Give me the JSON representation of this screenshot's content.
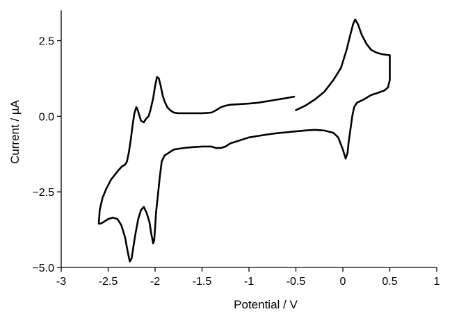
{
  "chart_data": {
    "type": "line",
    "title": "",
    "xlabel": "Potential  / V",
    "ylabel": "Current / µA",
    "xlim": [
      -3,
      1
    ],
    "ylim": [
      -5,
      3.5
    ],
    "xticks": [
      -3,
      -2.5,
      -2,
      -1.5,
      -1,
      -0.5,
      0,
      0.5,
      1
    ],
    "xtick_labels": [
      "-3",
      "-2.5",
      "-2",
      "-1.5",
      "-1",
      "-0.5",
      "0",
      "0.5",
      "1"
    ],
    "yticks": [
      -5,
      -2.5,
      0,
      2.5
    ],
    "ytick_labels": [
      "−5.0",
      "−2.5",
      "0.0",
      "2.5"
    ],
    "grid": false,
    "legend": "none",
    "series": [
      {
        "x": [
          -0.5,
          -0.4,
          -0.3,
          -0.2,
          -0.1,
          -0.02,
          0.04,
          0.08,
          0.11,
          0.13,
          0.16,
          0.2,
          0.25,
          0.3,
          0.36,
          0.42,
          0.47,
          0.5,
          0.5,
          0.48,
          0.44,
          0.38,
          0.3,
          0.22,
          0.15,
          0.12,
          0.1,
          0.08,
          0.06,
          0.05,
          0.03,
          0.0,
          -0.05,
          -0.1,
          -0.2,
          -0.3,
          -0.4,
          -0.5,
          -0.6,
          -0.7,
          -0.8,
          -0.9,
          -1.0,
          -1.1,
          -1.2,
          -1.25,
          -1.3,
          -1.35,
          -1.4,
          -1.45,
          -1.5,
          -1.6,
          -1.7,
          -1.8,
          -1.85,
          -1.9,
          -1.93,
          -1.95,
          -1.97,
          -1.99,
          -2.0,
          -2.01,
          -2.02,
          -2.04,
          -2.06,
          -2.09,
          -2.12,
          -2.15,
          -2.18,
          -2.21,
          -2.23,
          -2.25,
          -2.27,
          -2.29,
          -2.32,
          -2.36,
          -2.4,
          -2.45,
          -2.5,
          -2.55,
          -2.58,
          -2.6,
          -2.59,
          -2.56,
          -2.52,
          -2.47,
          -2.42,
          -2.38,
          -2.35,
          -2.32,
          -2.3,
          -2.28,
          -2.26,
          -2.24,
          -2.22,
          -2.2,
          -2.19,
          -2.17,
          -2.15,
          -2.12,
          -2.1,
          -2.07,
          -2.05,
          -2.02,
          -2.0,
          -1.98,
          -1.96,
          -1.94,
          -1.92,
          -1.9,
          -1.87,
          -1.84,
          -1.8,
          -1.75,
          -1.7,
          -1.65,
          -1.6,
          -1.5,
          -1.4,
          -1.35,
          -1.3,
          -1.25,
          -1.2,
          -1.1,
          -1.0,
          -0.9,
          -0.8,
          -0.7,
          -0.6,
          -0.52
        ],
        "y": [
          0.2,
          0.35,
          0.55,
          0.8,
          1.2,
          1.6,
          2.2,
          2.7,
          3.05,
          3.2,
          3.05,
          2.7,
          2.4,
          2.2,
          2.1,
          2.05,
          2.03,
          2.02,
          1.2,
          0.95,
          0.85,
          0.78,
          0.7,
          0.55,
          0.45,
          0.3,
          0.0,
          -0.45,
          -0.9,
          -1.2,
          -1.4,
          -1.1,
          -0.7,
          -0.55,
          -0.47,
          -0.45,
          -0.47,
          -0.5,
          -0.53,
          -0.56,
          -0.6,
          -0.65,
          -0.7,
          -0.8,
          -0.9,
          -1.0,
          -1.05,
          -1.05,
          -1.0,
          -1.0,
          -1.0,
          -1.02,
          -1.05,
          -1.1,
          -1.2,
          -1.3,
          -1.5,
          -2.0,
          -2.6,
          -3.2,
          -3.7,
          -4.1,
          -4.2,
          -3.9,
          -3.5,
          -3.2,
          -3.0,
          -3.1,
          -3.4,
          -3.9,
          -4.3,
          -4.7,
          -4.8,
          -4.5,
          -4.0,
          -3.6,
          -3.4,
          -3.35,
          -3.4,
          -3.5,
          -3.55,
          -3.55,
          -3.1,
          -2.7,
          -2.4,
          -2.1,
          -1.9,
          -1.75,
          -1.65,
          -1.6,
          -1.5,
          -1.2,
          -0.8,
          -0.3,
          0.1,
          0.3,
          0.25,
          0.05,
          -0.15,
          -0.2,
          -0.1,
          0.0,
          0.2,
          0.6,
          1.0,
          1.3,
          1.25,
          1.0,
          0.7,
          0.5,
          0.3,
          0.2,
          0.12,
          0.1,
          0.1,
          0.1,
          0.1,
          0.1,
          0.12,
          0.2,
          0.3,
          0.35,
          0.38,
          0.4,
          0.42,
          0.45,
          0.5,
          0.55,
          0.6,
          0.65
        ]
      }
    ]
  }
}
